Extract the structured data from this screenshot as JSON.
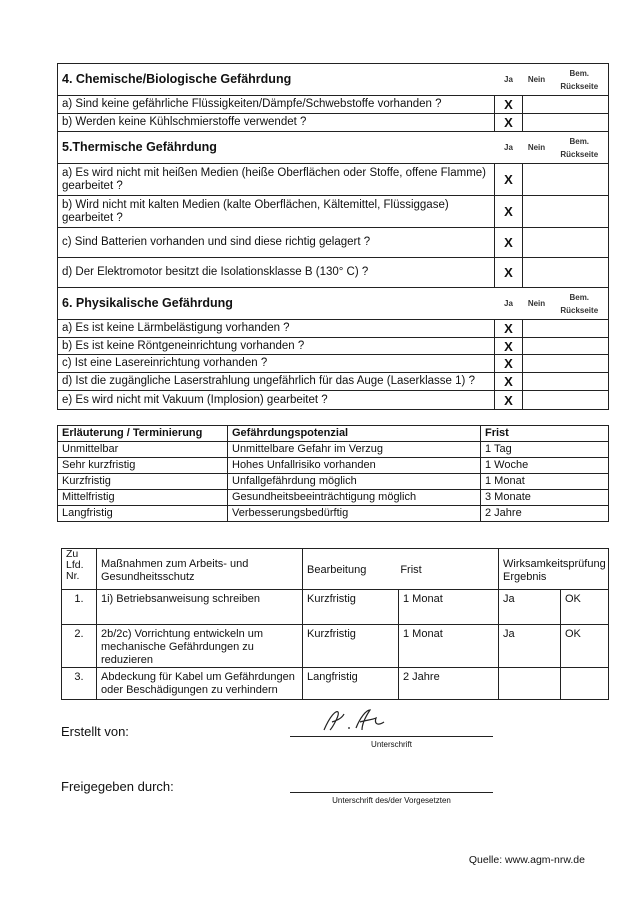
{
  "col_headers": {
    "ja": "Ja",
    "nein": "Nein",
    "bem": "Bem. Rückseite"
  },
  "sections": [
    {
      "title": "4. Chemische/Biologische Gefährdung",
      "items": [
        {
          "q": "a) Sind keine gefährliche Flüssigkeiten/Dämpfe/Schwebstoffe vorhanden ?",
          "ja": "X"
        },
        {
          "q": "b) Werden keine Kühlschmierstoffe verwendet ?",
          "ja": "X"
        }
      ]
    },
    {
      "title": "5.Thermische Gefährdung",
      "items": [
        {
          "q": "a) Es wird nicht mit heißen Medien (heiße Oberflächen oder Stoffe, offene Flamme) gearbeitet ?",
          "ja": "X"
        },
        {
          "q": "b) Wird nicht mit kalten Medien (kalte Oberflächen, Kältemittel, Flüssiggase) gearbeitet ?",
          "ja": "X"
        },
        {
          "q": "c) Sind Batterien vorhanden und sind diese richtig gelagert ?",
          "ja": "X"
        },
        {
          "q": "d) Der Elektromotor besitzt die Isolationsklasse B (130° C) ?",
          "ja": "X"
        }
      ]
    },
    {
      "title": "6. Physikalische Gefährdung",
      "items": [
        {
          "q": "a) Es ist keine Lärmbelästigung vorhanden ?",
          "ja": "X"
        },
        {
          "q": "b) Es ist keine Röntgeneinrichtung vorhanden ?",
          "ja": "X"
        },
        {
          "q": "c) Ist eine Lasereinrichtung vorhanden ?",
          "ja": "X"
        },
        {
          "q": "d) Ist die zugängliche Laserstrahlung ungefährlich für das Auge (Laserklasse 1) ?",
          "ja": "X"
        },
        {
          "q": "e) Es wird nicht mit Vakuum (Implosion) gearbeitet ?",
          "ja": "X"
        }
      ]
    }
  ],
  "legend": {
    "headers": [
      "Erläuterung / Terminierung",
      "Gefährdungspotenzial",
      "Frist"
    ],
    "rows": [
      [
        "Unmittelbar",
        "Unmittelbare Gefahr im Verzug",
        "1 Tag"
      ],
      [
        "Sehr kurzfristig",
        "Hohes Unfallrisiko vorhanden",
        "1 Woche"
      ],
      [
        "Kurzfristig",
        "Unfallgefährdung möglich",
        "1 Monat"
      ],
      [
        "Mittelfristig",
        "Gesundheitsbeeinträchtigung möglich",
        "3 Monate"
      ],
      [
        "Langfristig",
        "Verbesserungsbedürftig",
        "2 Jahre"
      ]
    ]
  },
  "measures": {
    "headers": {
      "nr": "Zu Lfd. Nr.",
      "massnahmen": "Maßnahmen zum Arbeits- und Gesundheitsschutz",
      "bearbeitung": "Bearbeitung",
      "frist": "Frist",
      "wirk": "Wirksamkeitsprüfung Ergebnis"
    },
    "rows": [
      [
        "1.",
        "1i) Betriebsanweisung schreiben",
        "Kurzfristig",
        "1 Monat",
        "Ja",
        "OK"
      ],
      [
        "2.",
        "2b/2c) Vorrichtung entwickeln um mechanische Gefährdungen zu reduzieren",
        "Kurzfristig",
        "1 Monat",
        "Ja",
        "OK"
      ],
      [
        "3.",
        "Abdeckung für Kabel um Gefährdungen oder Beschädigungen zu verhindern",
        "Langfristig",
        "2 Jahre",
        "",
        ""
      ]
    ]
  },
  "signatures": {
    "erstellt": "Erstellt von:",
    "erstellt_caption": "Unterschrift",
    "freigegeben": "Freigegeben durch:",
    "freigegeben_caption": "Unterschrift des/der Vorgesetzten",
    "signature_text": "M. Hb"
  },
  "source": "Quelle: www.agm-nrw.de"
}
